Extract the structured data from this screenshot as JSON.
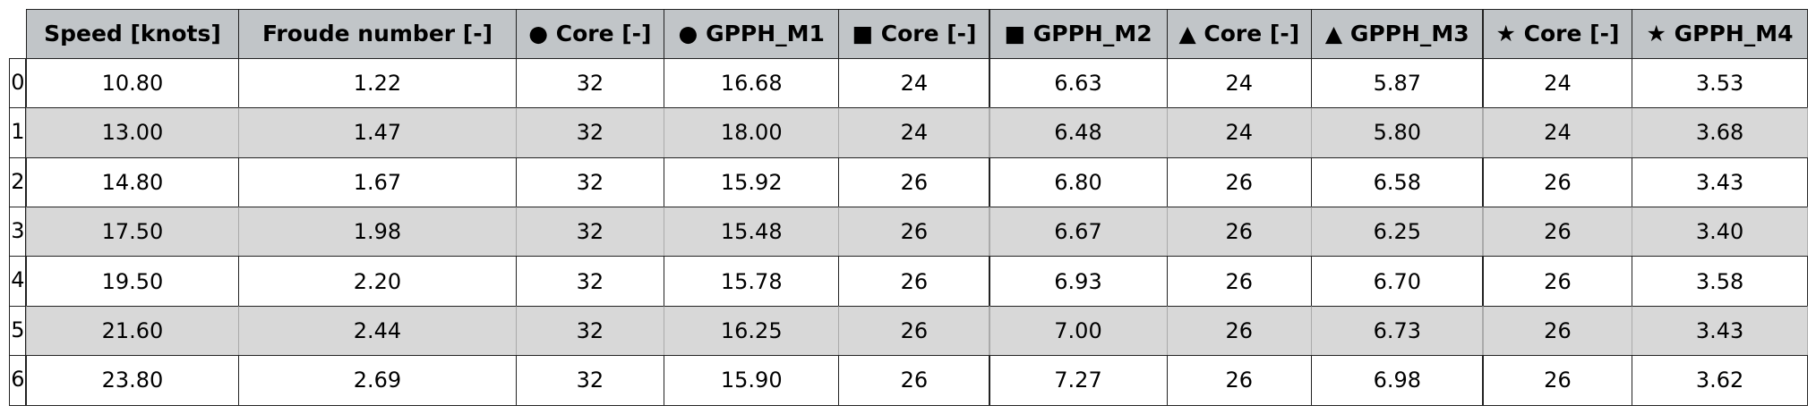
{
  "table": {
    "columns": [
      "Speed [knots]",
      "Froude number [-]",
      "● Core [-]",
      "● GPPH_M1",
      "■ Core [-]",
      "■ GPPH_M2",
      "▲ Core [-]",
      "▲ GPPH_M3",
      "★ Core [-]",
      "★ GPPH_M4"
    ],
    "index": [
      "0",
      "1",
      "2",
      "3",
      "4",
      "5",
      "6"
    ],
    "rows": [
      [
        "10.80",
        "1.22",
        "32",
        "16.68",
        "24",
        "6.63",
        "24",
        "5.87",
        "24",
        "3.53"
      ],
      [
        "13.00",
        "1.47",
        "32",
        "18.00",
        "24",
        "6.48",
        "24",
        "5.80",
        "24",
        "3.68"
      ],
      [
        "14.80",
        "1.67",
        "32",
        "15.92",
        "26",
        "6.80",
        "26",
        "6.58",
        "26",
        "3.43"
      ],
      [
        "17.50",
        "1.98",
        "32",
        "15.48",
        "26",
        "6.67",
        "26",
        "6.25",
        "26",
        "3.40"
      ],
      [
        "19.50",
        "2.20",
        "32",
        "15.78",
        "26",
        "6.93",
        "26",
        "6.70",
        "26",
        "3.58"
      ],
      [
        "21.60",
        "2.44",
        "32",
        "16.25",
        "26",
        "7.00",
        "26",
        "6.73",
        "26",
        "3.43"
      ],
      [
        "23.80",
        "2.69",
        "32",
        "15.90",
        "26",
        "7.27",
        "26",
        "6.98",
        "26",
        "3.62"
      ]
    ]
  }
}
